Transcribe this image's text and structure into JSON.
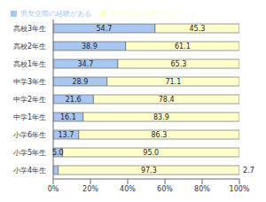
{
  "chart_data": {
    "type": "bar",
    "orientation": "horizontal",
    "stacked": true,
    "data_labels": true,
    "grid": false,
    "legend": "top",
    "categories": [
      "高校3年生",
      "高校2年生",
      "高校1年生",
      "中学3年生",
      "中学2年生",
      "中学1年生",
      "小学6年生",
      "小学5年生",
      "小学4年生"
    ],
    "series": [
      {
        "name": "男女交際の経験がある",
        "color": "#a9c6ee",
        "values": [
          54.7,
          38.9,
          34.7,
          28.9,
          21.6,
          16.1,
          13.7,
          5.0,
          2.7
        ],
        "value_labels": [
          "54.7",
          "38.9",
          "34.7",
          "28.9",
          "21.6",
          "16.1",
          "13.7",
          "5.0",
          "2.7"
        ]
      },
      {
        "name": "男女交際の経験がない",
        "color": "#ffffcc",
        "values": [
          45.3,
          61.1,
          65.3,
          71.1,
          78.4,
          83.9,
          86.3,
          95.0,
          97.3
        ],
        "value_labels": [
          "45.3",
          "61.1",
          "65.3",
          "71.1",
          "78.4",
          "83.9",
          "86.3",
          "95.0",
          "97.3"
        ]
      }
    ],
    "xlim": [
      0,
      100
    ],
    "xticks": [
      {
        "value": 0,
        "label": "0%"
      },
      {
        "value": 20,
        "label": "20%"
      },
      {
        "value": 40,
        "label": "40%"
      },
      {
        "value": 60,
        "label": "60%"
      },
      {
        "value": 80,
        "label": "80%"
      },
      {
        "value": 100,
        "label": "100%"
      }
    ]
  }
}
